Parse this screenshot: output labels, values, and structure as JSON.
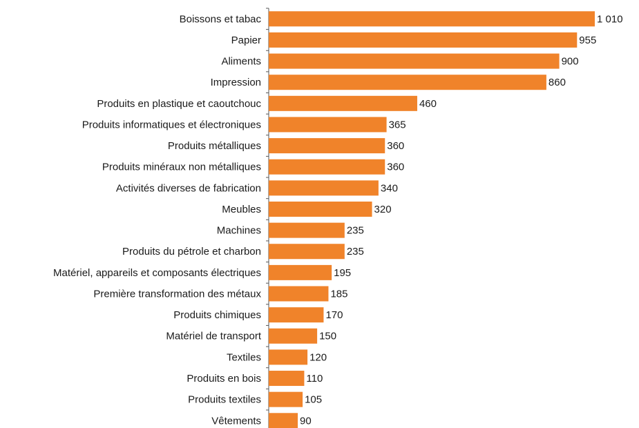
{
  "chart_data": {
    "type": "bar",
    "orientation": "horizontal",
    "color": "#f0832a",
    "categories": [
      "Boissons et tabac",
      "Papier",
      "Aliments",
      "Impression",
      "Produits en plastique et caoutchouc",
      "Produits informatiques et électroniques",
      "Produits métalliques",
      "Produits minéraux non métalliques",
      "Activités diverses de fabrication",
      "Meubles",
      "Machines",
      "Produits du pétrole et charbon",
      "Matériel, appareils et composants électriques",
      "Première transformation des métaux",
      "Produits chimiques",
      "Matériel de transport",
      "Textiles",
      "Produits en bois",
      "Produits textiles",
      "Vêtements"
    ],
    "values": [
      1010,
      955,
      900,
      860,
      460,
      365,
      360,
      360,
      340,
      320,
      235,
      235,
      195,
      185,
      170,
      150,
      120,
      110,
      105,
      90
    ],
    "value_labels": [
      "1 010",
      "955",
      "900",
      "860",
      "460",
      "365",
      "360",
      "360",
      "340",
      "320",
      "235",
      "235",
      "195",
      "185",
      "170",
      "150",
      "120",
      "110",
      "105",
      "90"
    ]
  }
}
